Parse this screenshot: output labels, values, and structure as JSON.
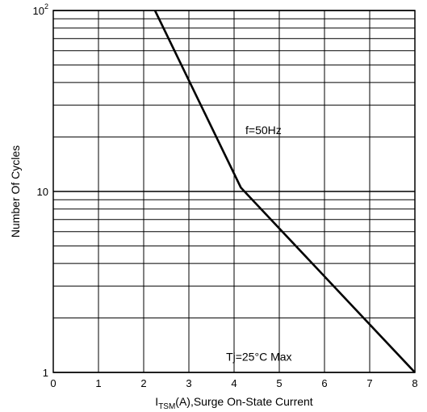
{
  "chart_data": {
    "type": "line",
    "y_scale": "log",
    "grid": true,
    "xlim": [
      0,
      8
    ],
    "ylim": [
      1,
      100
    ],
    "x_ticks": [
      "0",
      "1",
      "2",
      "3",
      "4",
      "5",
      "6",
      "7",
      "8"
    ],
    "y_ticks": [
      {
        "value": 1,
        "label": "1"
      },
      {
        "value": 10,
        "label": "10"
      },
      {
        "value": 100,
        "base": "10",
        "exp": "2"
      }
    ],
    "xlabel": {
      "prefix": "I",
      "sub": "TSM",
      "suffix": "(A),Surge On-State Current"
    },
    "ylabel": "Number Of Cycles",
    "series": [
      {
        "x": [
          2.25,
          4.15,
          8.0
        ],
        "y": [
          100,
          10.5,
          1.0
        ]
      }
    ],
    "annotations": [
      {
        "text": "f=50Hz",
        "x": 4.65,
        "y": 21.8
      },
      {
        "text": "Tj=25°C Max",
        "x": 4.55,
        "y": 1.22
      }
    ]
  }
}
